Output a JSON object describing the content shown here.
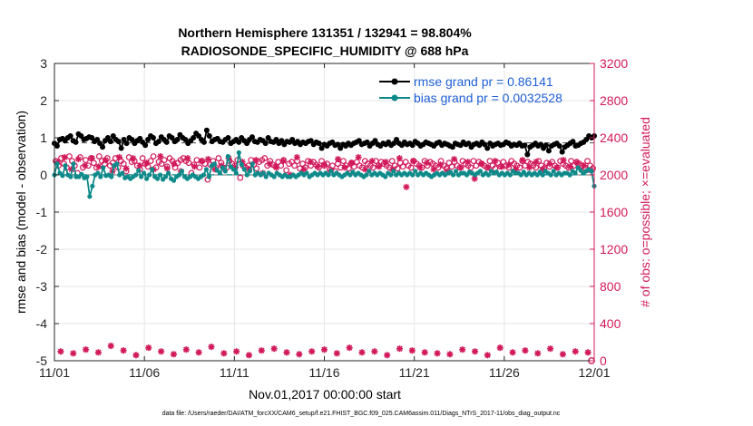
{
  "chart_data": {
    "type": "line",
    "title": "Northern Hemisphere 131351 / 132941 = 98.804%",
    "subtitle": "RADIOSONDE_SPECIFIC_HUMIDITY @ 688 hPa",
    "xlabel": "Nov.01,2017 00:00:00 start",
    "ylabel": "rmse and bias (model - observation)",
    "ylabel_right": "# of obs: o=possible; ×=evaluated",
    "xlim": [
      0,
      30
    ],
    "ylim": [
      -5,
      3
    ],
    "ylim_right": [
      0,
      3200
    ],
    "x_ticks": [
      0,
      5,
      10,
      15,
      20,
      25,
      30
    ],
    "x_tick_labels": [
      "11/01",
      "11/06",
      "11/11",
      "11/16",
      "11/21",
      "11/26",
      "12/01"
    ],
    "y_ticks": [
      3,
      2,
      1,
      0,
      -1,
      -2,
      -3,
      -4,
      -5
    ],
    "y_tick_labels": [
      "3",
      "2",
      "1",
      "0",
      "-1",
      "-2",
      "-3",
      "-4",
      "-5"
    ],
    "y_right_ticks": [
      3200,
      2800,
      2400,
      2000,
      1600,
      1200,
      800,
      400,
      0
    ],
    "y_right_tick_labels": [
      "3200",
      "2800",
      "2400",
      "2000",
      "1600",
      "1200",
      "800",
      "400",
      "0"
    ],
    "legend": [
      {
        "label": "rmse grand pr = 0.86141",
        "color": "#000000"
      },
      {
        "label": "bias grand pr = 0.0032528",
        "color": "#0f8a8a"
      }
    ],
    "series": [
      {
        "name": "rmse",
        "axis": "left",
        "color": "#000000",
        "grand_mean": 0.86141,
        "values": [
          0.85,
          0.78,
          0.95,
          0.98,
          0.92,
          1.0,
          1.05,
          0.92,
          0.88,
          1.1,
          1.05,
          0.95,
          0.98,
          1.02,
          1.0,
          0.9,
          0.95,
          0.85,
          0.75,
          0.92,
          1.0,
          0.9,
          1.05,
          0.95,
          0.9,
          0.72,
          0.95,
          0.85,
          1.0,
          0.95,
          0.85,
          0.92,
          0.98,
          0.88,
          0.8,
          0.95,
          1.05,
          1.0,
          0.85,
          0.9,
          1.02,
          0.95,
          0.88,
          1.05,
          1.0,
          0.9,
          0.95,
          1.08,
          1.0,
          0.95,
          0.85,
          0.92,
          1.0,
          1.12,
          1.05,
          0.95,
          0.88,
          1.2,
          1.05,
          0.9,
          0.95,
          0.98,
          0.9,
          0.88,
          0.95,
          1.0,
          0.85,
          0.9,
          0.95,
          0.88,
          1.0,
          0.92,
          0.85,
          0.95,
          1.02,
          0.9,
          0.88,
          0.95,
          0.92,
          0.85,
          1.0,
          0.9,
          0.88,
          0.95,
          0.85,
          0.92,
          0.82,
          0.9,
          0.88,
          0.95,
          0.85,
          0.9,
          0.82,
          0.88,
          0.85,
          0.9,
          0.92,
          0.82,
          0.88,
          0.85,
          0.72,
          0.82,
          0.78,
          0.85,
          0.88,
          0.8,
          0.82,
          0.72,
          0.82,
          0.78,
          0.85,
          0.8,
          0.85,
          0.88,
          0.92,
          0.82,
          0.85,
          0.88,
          0.78,
          0.85,
          0.92,
          0.82,
          0.78,
          0.85,
          0.82,
          0.88,
          0.8,
          0.85,
          0.95,
          0.85,
          0.8,
          0.88,
          0.82,
          0.85,
          0.8,
          0.9,
          0.85,
          0.78,
          0.82,
          0.88,
          0.85,
          0.82,
          0.78,
          0.85,
          0.88,
          0.8,
          0.85,
          0.82,
          0.78,
          0.75,
          0.85,
          0.82,
          0.8,
          0.88,
          0.82,
          0.85,
          0.75,
          0.82,
          0.85,
          0.8,
          0.88,
          0.82,
          0.72,
          0.85,
          0.78,
          0.82,
          0.85,
          0.8,
          0.82,
          0.88,
          0.85,
          0.78,
          0.82,
          0.8,
          0.85,
          0.78,
          0.8,
          0.55,
          0.75,
          0.8,
          0.85,
          0.78,
          0.82,
          0.72,
          0.8,
          0.65,
          0.78,
          0.82,
          0.85,
          0.78,
          0.62,
          0.75,
          0.8,
          0.85,
          0.9,
          0.78,
          0.8,
          0.85,
          0.88,
          0.95,
          1.05,
          1.0,
          1.05
        ]
      },
      {
        "name": "bias",
        "axis": "left",
        "color": "#0f8a8a",
        "grand_mean": 0.0032528,
        "values": [
          0.0,
          0.3,
          0.05,
          -0.02,
          0.25,
          0.0,
          -0.05,
          0.3,
          -0.05,
          -0.05,
          0.02,
          -0.08,
          -0.05,
          -0.58,
          -0.3,
          0.0,
          0.05,
          -0.05,
          0.2,
          -0.02,
          0.0,
          -0.05,
          0.25,
          0.3,
          0.0,
          0.05,
          -0.08,
          -0.05,
          -0.1,
          -0.05,
          0.0,
          0.12,
          -0.05,
          0.05,
          -0.1,
          0.0,
          0.15,
          -0.05,
          -0.1,
          0.0,
          -0.12,
          -0.05,
          0.05,
          -0.1,
          -0.15,
          -0.05,
          0.0,
          0.1,
          -0.05,
          -0.1,
          -0.05,
          0.0,
          -0.05,
          -0.1,
          -0.05,
          0.0,
          0.15,
          -0.05,
          0.25,
          0.3,
          0.12,
          0.05,
          0.2,
          0.1,
          0.5,
          0.22,
          0.15,
          0.05,
          0.6,
          0.28,
          0.15,
          0.0,
          0.1,
          0.3,
          0.0,
          0.05,
          0.0,
          0.05,
          -0.05,
          0.05,
          0.0,
          -0.05,
          0.05,
          0.0,
          -0.05,
          0.0,
          -0.05,
          -0.05,
          0.0,
          -0.05,
          0.0,
          0.05,
          0.0,
          0.05,
          -0.05,
          0.0,
          0.05,
          0.0,
          0.05,
          0.0,
          0.05,
          0.0,
          0.1,
          0.0,
          0.05,
          0.0,
          -0.05,
          0.0,
          0.05,
          0.0,
          0.08,
          0.0,
          0.05,
          0.0,
          -0.05,
          0.0,
          0.1,
          0.0,
          0.05,
          0.0,
          0.05,
          0.0,
          -0.05,
          0.05,
          0.0,
          0.1,
          0.0,
          0.05,
          0.0,
          0.05,
          0.0,
          0.05,
          0.0,
          0.1,
          0.0,
          0.05,
          0.0,
          0.05,
          0.0,
          -0.05,
          0.0,
          0.05,
          0.0,
          0.05,
          0.0,
          0.05,
          0.08,
          0.0,
          0.1,
          0.0,
          0.05,
          0.05,
          0.0,
          0.08,
          0.05,
          0.0,
          0.05,
          0.1,
          0.0,
          0.05,
          0.0,
          0.1,
          0.05,
          0.08,
          0.0,
          0.05,
          0.0,
          0.05,
          0.0,
          0.1,
          0.05,
          0.05,
          0.0,
          0.08,
          0.0,
          0.05,
          0.0,
          0.05,
          0.0,
          0.08,
          0.0,
          0.1,
          0.05,
          0.0,
          0.1,
          0.0,
          0.05,
          0.0,
          0.05,
          0.05,
          0.0,
          0.1,
          0.05,
          0.2,
          0.12,
          0.05,
          0.1,
          0.15,
          0.1,
          -0.3
        ]
      },
      {
        "name": "# obs possible",
        "axis": "right",
        "color": "#d11a5a",
        "values_per_day": [
          2150,
          2100,
          2180,
          2120,
          2080,
          2200,
          2150,
          2100,
          2020,
          2190,
          2080,
          2160,
          2100,
          2180,
          2130,
          2080,
          2200,
          2150,
          2120,
          2180,
          2100,
          2130,
          2180,
          2080,
          2150,
          2120,
          2040,
          2190,
          2140,
          2150,
          2100,
          2060,
          2180,
          2120,
          2090,
          2150,
          2200,
          2080,
          2140,
          2120,
          2160,
          2090,
          2180,
          2150,
          2080,
          2130,
          2160,
          2180,
          2150,
          2130,
          2020,
          2110,
          2160,
          2080,
          2150,
          2120,
          1950,
          2110,
          2150,
          2080,
          2180,
          2130,
          2070,
          2080,
          2150,
          2120,
          2100,
          2160,
          1970,
          2100,
          2080,
          2100,
          2160,
          2110,
          2070,
          2140,
          2160,
          2180,
          2100,
          2150,
          2110,
          2090,
          2140,
          2100,
          2160,
          2050,
          2120,
          2140,
          2100,
          2150,
          2070,
          2120,
          2080,
          2150,
          2100,
          2140,
          2110,
          2080,
          2150,
          2100,
          2120,
          2060,
          2100,
          2040,
          2120,
          2080,
          2150,
          2100,
          2070,
          2130,
          2090,
          2140,
          2100,
          2080,
          2150,
          2120,
          2100,
          2080,
          2150,
          2100,
          2140,
          2120,
          2100,
          2080,
          2150,
          2100,
          2070,
          2130,
          2090,
          2140,
          2100,
          2080,
          2150,
          2120,
          2100,
          2080,
          2150,
          2100,
          2140,
          2120,
          2100,
          2080,
          2150,
          2100,
          2070,
          2130,
          2090,
          2140,
          2100,
          2080,
          2150,
          2120,
          2100,
          2080,
          2150,
          2100,
          2140,
          2120,
          2100,
          2080,
          2150,
          2100,
          2070,
          2130,
          2090,
          2140,
          2100,
          2080,
          2150,
          2120,
          2100,
          2080,
          2150,
          2100,
          2140,
          2120,
          2100,
          2080,
          2150,
          2100,
          2070,
          2130,
          2090,
          2140,
          2100,
          2080,
          2150,
          2120,
          2100,
          2080,
          2150,
          2100,
          2140,
          2120,
          2100,
          2080,
          2150,
          2100,
          2070
        ]
      },
      {
        "name": "# obs evaluated",
        "axis": "right",
        "color": "#d11a5a",
        "values": [
          2140,
          2190,
          2060,
          2170,
          2100,
          2180,
          2090,
          2160,
          2040,
          2190,
          2070,
          2180,
          2100,
          2130,
          2060,
          2200,
          2070,
          2120,
          2040,
          2180,
          2090,
          2150,
          2170,
          2060,
          2100,
          2180,
          2080,
          2140,
          2060,
          2160,
          2020,
          2120,
          2080,
          2150,
          2000,
          2190,
          2060,
          2140,
          2090,
          2110,
          2050,
          2170,
          2080,
          2130,
          2190,
          2060,
          2150,
          2090,
          2140,
          2060,
          2180,
          1870,
          2150,
          2080,
          2130,
          2060,
          2110,
          2040,
          2170,
          2080,
          2140,
          1960,
          2120,
          2080,
          2150,
          2090,
          2110,
          2060,
          2160,
          2080,
          2140,
          2060,
          2120,
          2080,
          2160,
          2090,
          2130,
          2100,
          2050
        ]
      }
    ],
    "obs_possible_bottom": [
      100,
      80,
      120,
      90,
      160,
      110,
      60,
      140,
      100,
      70,
      120,
      90,
      150,
      80,
      100,
      60,
      110,
      130,
      90,
      70,
      100,
      120,
      80,
      140,
      90,
      100,
      60,
      130,
      110,
      90,
      80,
      70,
      120,
      100,
      60,
      140,
      90,
      110,
      80,
      130,
      70,
      100,
      90
    ]
  },
  "footer": "data file: /Users/raeder/DAI/ATM_forcXX/CAM6_setup/f.e21.FHIST_BGC.f09_025.CAM6assim.011/Diags_NTrS_2017-11/obs_diag_output.nc"
}
